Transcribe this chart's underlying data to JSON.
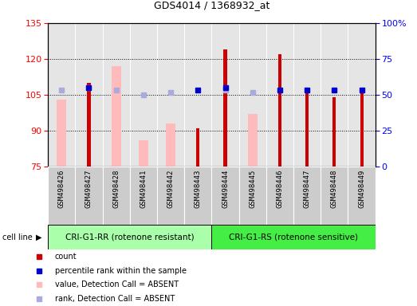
{
  "title": "GDS4014 / 1368932_at",
  "samples": [
    "GSM498426",
    "GSM498427",
    "GSM498428",
    "GSM498441",
    "GSM498442",
    "GSM498443",
    "GSM498444",
    "GSM498445",
    "GSM498446",
    "GSM498447",
    "GSM498448",
    "GSM498449"
  ],
  "group1_label": "CRI-G1-RR (rotenone resistant)",
  "group2_label": "CRI-G1-RS (rotenone sensitive)",
  "group1_count": 6,
  "group2_count": 6,
  "ylim_left": [
    75,
    135
  ],
  "yticks_left": [
    75,
    90,
    105,
    120,
    135
  ],
  "yticks_right_vals": [
    0,
    25,
    50,
    75,
    100
  ],
  "yticks_right_labels": [
    "0",
    "25",
    "50",
    "75",
    "100%"
  ],
  "count_values": [
    null,
    110,
    null,
    null,
    null,
    91,
    124,
    null,
    122,
    108,
    104,
    107
  ],
  "rank_values": [
    null,
    108,
    null,
    null,
    null,
    107,
    108,
    null,
    107,
    107,
    107,
    107
  ],
  "absent_value_values": [
    103,
    null,
    117,
    86,
    93,
    null,
    null,
    97,
    null,
    null,
    null,
    null
  ],
  "absent_rank_values": [
    107,
    108,
    107,
    105,
    106,
    null,
    107,
    106,
    null,
    null,
    null,
    null
  ],
  "count_color": "#cc0000",
  "rank_color": "#0000cc",
  "absent_value_color": "#ffbbbb",
  "absent_rank_color": "#aaaadd",
  "group1_bg": "#aaffaa",
  "group2_bg": "#44ee44",
  "col_bg": "#cccccc",
  "bar_base": 75,
  "grid_lines": [
    90,
    105,
    120
  ],
  "legend_items": [
    {
      "color": "#cc0000",
      "marker": "s",
      "label": "count"
    },
    {
      "color": "#0000cc",
      "marker": "s",
      "label": "percentile rank within the sample"
    },
    {
      "color": "#ffbbbb",
      "marker": "s",
      "label": "value, Detection Call = ABSENT"
    },
    {
      "color": "#aaaadd",
      "marker": "s",
      "label": "rank, Detection Call = ABSENT"
    }
  ]
}
